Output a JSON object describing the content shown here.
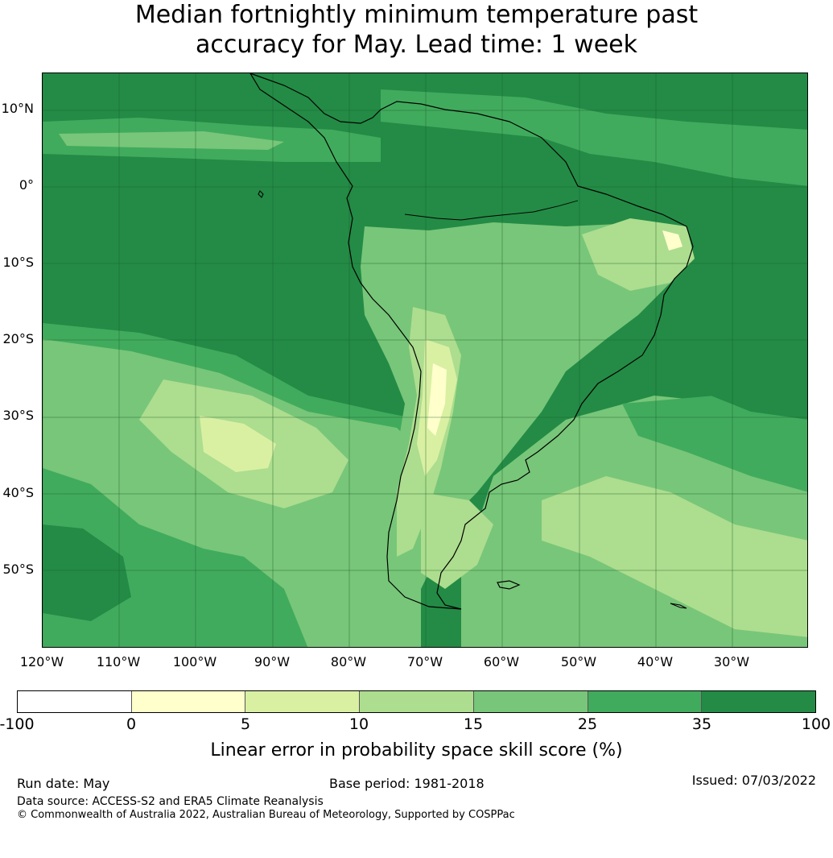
{
  "title": {
    "line1": "Median fortnightly minimum temperature past",
    "line2": "accuracy for May. Lead time: 1 week"
  },
  "map": {
    "lat_labels": [
      "10°N",
      "0°",
      "10°S",
      "20°S",
      "30°S",
      "40°S",
      "50°S"
    ],
    "lon_labels": [
      "120°W",
      "110°W",
      "100°W",
      "90°W",
      "80°W",
      "70°W",
      "60°W",
      "50°W",
      "40°W",
      "30°W"
    ],
    "colors": {
      "class_0_5": "#ffffcc",
      "class_5_10": "#d9f0a3",
      "class_10_15": "#addd8e",
      "class_15_25": "#78c679",
      "class_25_35": "#41ab5d",
      "class_35_100": "#238b45",
      "gridline": "#1b5e2e",
      "coastline": "#000000"
    }
  },
  "colorbar": {
    "ticks": [
      "-100",
      "0",
      "5",
      "10",
      "15",
      "25",
      "35",
      "100"
    ],
    "colors": [
      "#ffffff",
      "#ffffcc",
      "#d9f0a3",
      "#addd8e",
      "#78c679",
      "#41ab5d",
      "#238b45"
    ],
    "label": "Linear error in probability space skill score (%)"
  },
  "footer": {
    "run_date": "Run date: May",
    "base_period": "Base period: 1981-2018",
    "issued": "Issued: 07/03/2022",
    "data_source": "Data source: ACCESS-S2 and ERA5 Climate Reanalysis",
    "copyright": "© Commonwealth of Australia 2022, Australian Bureau of Meteorology, Supported by COSPPac"
  }
}
